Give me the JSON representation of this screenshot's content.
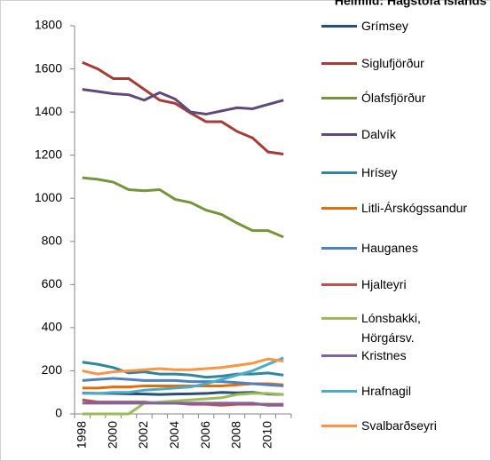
{
  "chart_data": {
    "type": "line",
    "title": "Heimild: Hagstofa Íslands",
    "categories": [
      "1998",
      null,
      "2000",
      null,
      "2002",
      null,
      "2004",
      null,
      "2006",
      null,
      "2008",
      null,
      "2010",
      null
    ],
    "ylim": [
      0,
      1800
    ],
    "yticks": [
      0,
      200,
      400,
      600,
      800,
      1000,
      1200,
      1400,
      1600,
      1800
    ],
    "series": [
      {
        "name": "Grímsey",
        "color": "#2c4d75",
        "values": [
          97,
          95,
          95,
          93,
          92,
          90,
          92,
          93,
          95,
          100,
          98,
          100,
          92,
          90
        ]
      },
      {
        "name": "Siglufjörður",
        "color": "#a63c38",
        "values": [
          1630,
          1600,
          1555,
          1555,
          1505,
          1455,
          1440,
          1395,
          1355,
          1355,
          1310,
          1280,
          1215,
          1205
        ]
      },
      {
        "name": "Ólafsfjörður",
        "color": "#77933c",
        "values": [
          1095,
          1088,
          1075,
          1040,
          1035,
          1040,
          995,
          980,
          945,
          925,
          885,
          850,
          850,
          820
        ]
      },
      {
        "name": "Dalvík",
        "color": "#5f497a",
        "values": [
          1505,
          1495,
          1485,
          1480,
          1455,
          1490,
          1460,
          1400,
          1390,
          1405,
          1420,
          1415,
          1435,
          1455
        ]
      },
      {
        "name": "Hrísey",
        "color": "#31859c",
        "values": [
          240,
          230,
          215,
          190,
          195,
          185,
          185,
          180,
          170,
          175,
          185,
          185,
          190,
          180
        ]
      },
      {
        "name": "Litli-Árskógssandur",
        "color": "#e46c0a",
        "values": [
          120,
          120,
          125,
          125,
          130,
          130,
          130,
          130,
          130,
          130,
          135,
          140,
          140,
          135
        ]
      },
      {
        "name": "Hauganes",
        "color": "#4f81bd",
        "values": [
          155,
          160,
          165,
          160,
          155,
          155,
          155,
          150,
          150,
          150,
          145,
          140,
          135,
          130
        ]
      },
      {
        "name": "Hjalteyri",
        "color": "#c0504d",
        "values": [
          65,
          55,
          55,
          55,
          55,
          50,
          50,
          45,
          45,
          40,
          45,
          45,
          45,
          45
        ]
      },
      {
        "name": "Lónsbakki, Hörgársv.",
        "color": "#9bbb59",
        "values": [
          0,
          0,
          0,
          0,
          50,
          55,
          60,
          65,
          70,
          75,
          90,
          95,
          95,
          90
        ]
      },
      {
        "name": "Kristnes",
        "color": "#8064a2",
        "values": [
          50,
          50,
          50,
          50,
          50,
          50,
          50,
          50,
          50,
          50,
          50,
          50,
          40,
          40
        ]
      },
      {
        "name": "Hrafnagil",
        "color": "#4bacc6",
        "values": [
          95,
          95,
          100,
          100,
          110,
          115,
          120,
          125,
          140,
          160,
          180,
          200,
          230,
          260
        ]
      },
      {
        "name": "Svalbarðseyri",
        "color": "#f79646",
        "values": [
          200,
          185,
          195,
          200,
          205,
          210,
          205,
          205,
          210,
          215,
          225,
          235,
          255,
          245
        ]
      }
    ]
  }
}
